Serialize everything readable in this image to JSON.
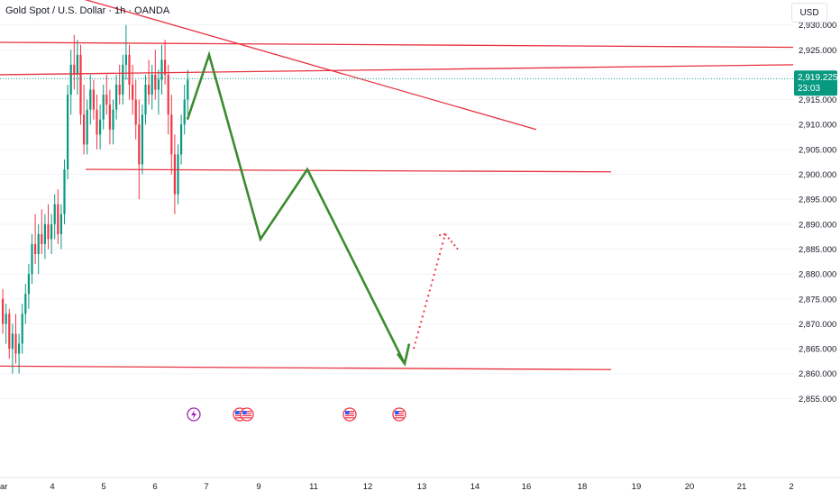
{
  "header": {
    "symbol_title": "Gold Spot / U.S. Dollar · 1h · OANDA",
    "currency_label": "USD"
  },
  "price_badge": {
    "price": "2,919.225",
    "countdown": "23:03",
    "color": "#089981"
  },
  "colors": {
    "up": "#089981",
    "down": "#f23645",
    "trendline": "#e8323f",
    "projection": "#3b8b2f",
    "grid": "#f0f3fa"
  },
  "chart_data": {
    "type": "candlestick",
    "yaxis": {
      "ylim": [
        2850,
        2935
      ],
      "ticks": [
        2855,
        2860,
        2865,
        2870,
        2875,
        2880,
        2885,
        2890,
        2895,
        2900,
        2905,
        2910,
        2915,
        2920,
        2925,
        2930
      ],
      "tick_labels": [
        "2,855.000",
        "2,860.000",
        "2,865.000",
        "2,870.000",
        "2,875.000",
        "2,880.000",
        "2,885.000",
        "2,890.000",
        "2,895.000",
        "2,900.000",
        "2,905.000",
        "2,910.000",
        "2,915.000",
        "2,920.000",
        "2,925.000",
        "2,930.000"
      ]
    },
    "xaxis": {
      "tick_labels": [
        "ar",
        "4",
        "5",
        "6",
        "7",
        "9",
        "11",
        "12",
        "13",
        "14",
        "16",
        "18",
        "19",
        "20",
        "21",
        "2"
      ]
    },
    "current_price": 2919.225,
    "candles": [
      [
        2875,
        2877,
        2868,
        2870
      ],
      [
        2870,
        2874,
        2866,
        2872
      ],
      [
        2872,
        2873,
        2863,
        2865
      ],
      [
        2865,
        2870,
        2860,
        2868
      ],
      [
        2868,
        2872,
        2862,
        2864
      ],
      [
        2864,
        2868,
        2860,
        2866
      ],
      [
        2866,
        2874,
        2864,
        2872
      ],
      [
        2872,
        2878,
        2870,
        2876
      ],
      [
        2876,
        2882,
        2873,
        2880
      ],
      [
        2880,
        2888,
        2878,
        2886
      ],
      [
        2886,
        2892,
        2882,
        2884
      ],
      [
        2884,
        2890,
        2880,
        2888
      ],
      [
        2888,
        2893,
        2884,
        2886
      ],
      [
        2886,
        2892,
        2883,
        2890
      ],
      [
        2890,
        2894,
        2885,
        2887
      ],
      [
        2887,
        2892,
        2884,
        2890
      ],
      [
        2890,
        2896,
        2887,
        2894
      ],
      [
        2894,
        2897,
        2886,
        2888
      ],
      [
        2888,
        2894,
        2885,
        2892
      ],
      [
        2892,
        2903,
        2890,
        2901
      ],
      [
        2901,
        2918,
        2899,
        2916
      ],
      [
        2916,
        2925,
        2912,
        2922
      ],
      [
        2922,
        2928,
        2917,
        2920
      ],
      [
        2920,
        2927,
        2916,
        2924
      ],
      [
        2924,
        2926,
        2910,
        2912
      ],
      [
        2912,
        2918,
        2904,
        2906
      ],
      [
        2906,
        2915,
        2904,
        2913
      ],
      [
        2913,
        2920,
        2910,
        2917
      ],
      [
        2917,
        2919,
        2911,
        2913
      ],
      [
        2913,
        2916,
        2905,
        2908
      ],
      [
        2908,
        2914,
        2905,
        2911
      ],
      [
        2911,
        2918,
        2909,
        2916
      ],
      [
        2916,
        2920,
        2912,
        2914
      ],
      [
        2914,
        2917,
        2906,
        2909
      ],
      [
        2909,
        2915,
        2906,
        2913
      ],
      [
        2913,
        2920,
        2911,
        2918
      ],
      [
        2918,
        2922,
        2914,
        2916
      ],
      [
        2916,
        2924,
        2914,
        2922
      ],
      [
        2922,
        2930,
        2919,
        2924
      ],
      [
        2924,
        2926,
        2915,
        2918
      ],
      [
        2918,
        2922,
        2912,
        2915
      ],
      [
        2915,
        2919,
        2907,
        2910
      ],
      [
        2910,
        2915,
        2895,
        2902
      ],
      [
        2902,
        2914,
        2900,
        2912
      ],
      [
        2912,
        2920,
        2910,
        2918
      ],
      [
        2918,
        2923,
        2914,
        2916
      ],
      [
        2916,
        2922,
        2913,
        2920
      ],
      [
        2920,
        2925,
        2915,
        2917
      ],
      [
        2917,
        2921,
        2912,
        2919
      ],
      [
        2919,
        2926,
        2916,
        2923
      ],
      [
        2923,
        2927,
        2918,
        2920
      ],
      [
        2920,
        2922,
        2908,
        2912
      ],
      [
        2912,
        2916,
        2900,
        2904
      ],
      [
        2904,
        2908,
        2892,
        2896
      ],
      [
        2896,
        2906,
        2894,
        2904
      ],
      [
        2904,
        2912,
        2902,
        2910
      ],
      [
        2910,
        2918,
        2908,
        2915
      ],
      [
        2915,
        2921,
        2912,
        2919
      ]
    ],
    "lines": [
      {
        "name": "",
        "kind": "descending-trendline",
        "points": [
          [
            0,
            2940
          ],
          [
            595,
            2909
          ]
        ]
      },
      {
        "name": "",
        "kind": "resistance-upper",
        "points": [
          [
            0,
            2926.5
          ],
          [
            880,
            2925.5
          ]
        ]
      },
      {
        "name": "",
        "kind": "resistance-lower",
        "points": [
          [
            0,
            2920
          ],
          [
            880,
            2922
          ]
        ]
      },
      {
        "name": "",
        "kind": "support-mid",
        "points": [
          [
            95,
            2901
          ],
          [
            678,
            2900.5
          ]
        ]
      },
      {
        "name": "",
        "kind": "support-low",
        "points": [
          [
            0,
            2861.5
          ],
          [
            678,
            2860.8
          ]
        ]
      }
    ],
    "projection_path": [
      [
        208,
        2911
      ],
      [
        232,
        2924
      ],
      [
        289,
        2887
      ],
      [
        341,
        2901
      ],
      [
        449,
        2862
      ]
    ],
    "projection_arrow": [
      [
        441,
        2864
      ],
      [
        449,
        2862
      ],
      [
        454,
        2866
      ]
    ],
    "rebound_dotted": [
      [
        459,
        2865
      ],
      [
        494,
        2888
      ]
    ],
    "events": [
      {
        "x": 215,
        "kind": "flash"
      },
      {
        "x": 266,
        "kind": "us-flag"
      },
      {
        "x": 274,
        "kind": "us-flag"
      },
      {
        "x": 388,
        "kind": "us-flag"
      },
      {
        "x": 443,
        "kind": "us-flag"
      }
    ]
  }
}
